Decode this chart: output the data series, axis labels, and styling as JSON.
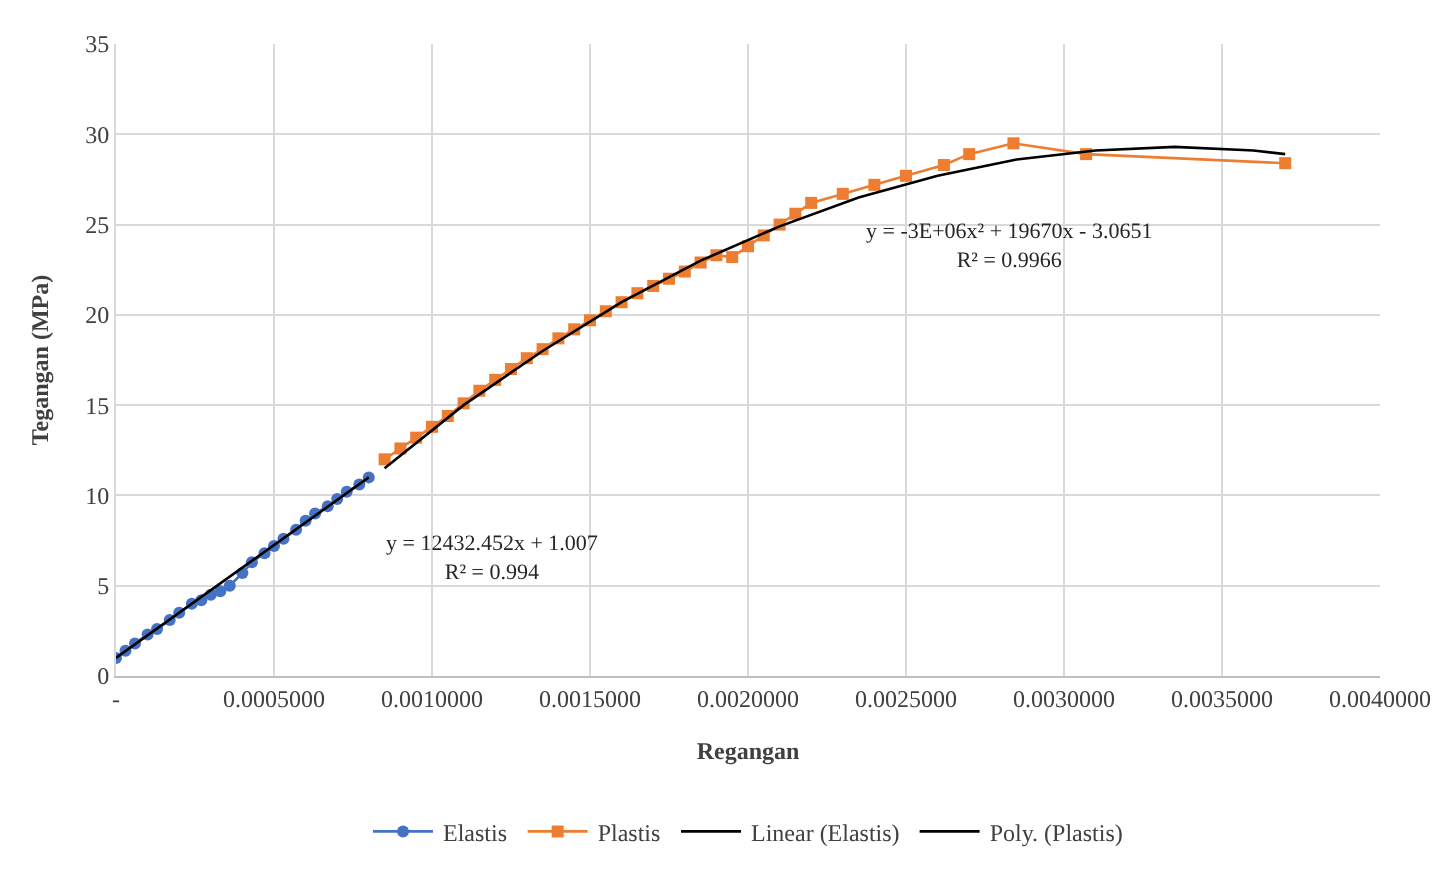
{
  "chart_data": {
    "type": "line",
    "xlabel": "Regangan",
    "ylabel": "Tegangan (MPa)",
    "xlim": [
      0,
      0.004
    ],
    "xticks": [
      {
        "value": 0,
        "label": "-"
      },
      {
        "value": 0.0005,
        "label": "0.0005000"
      },
      {
        "value": 0.001,
        "label": "0.0010000"
      },
      {
        "value": 0.0015,
        "label": "0.0015000"
      },
      {
        "value": 0.002,
        "label": "0.0020000"
      },
      {
        "value": 0.0025,
        "label": "0.0025000"
      },
      {
        "value": 0.003,
        "label": "0.0030000"
      },
      {
        "value": 0.0035,
        "label": "0.0035000"
      },
      {
        "value": 0.004,
        "label": "0.0040000"
      }
    ],
    "ylim": [
      0,
      35
    ],
    "yticks": [
      0,
      5,
      10,
      15,
      20,
      25,
      30,
      35
    ],
    "grid": true,
    "legend": "bottom",
    "series": [
      {
        "name": "Elastis",
        "color": "#4472c4",
        "marker": "circle",
        "x": [
          0,
          3e-05,
          6e-05,
          0.0001,
          0.00013,
          0.00017,
          0.0002,
          0.00024,
          0.00027,
          0.0003,
          0.00033,
          0.00036,
          0.0004,
          0.00043,
          0.00047,
          0.0005,
          0.00053,
          0.00057,
          0.0006,
          0.00063,
          0.00067,
          0.0007,
          0.00073,
          0.00077,
          0.0008
        ],
        "values": [
          1.0,
          1.4,
          1.8,
          2.3,
          2.6,
          3.1,
          3.5,
          4.0,
          4.2,
          4.5,
          4.7,
          5.0,
          5.7,
          6.3,
          6.8,
          7.2,
          7.6,
          8.1,
          8.6,
          9.0,
          9.4,
          9.8,
          10.2,
          10.6,
          11.0
        ]
      },
      {
        "name": "Plastis",
        "color": "#ed7d31",
        "marker": "square",
        "x": [
          0.00085,
          0.0009,
          0.00095,
          0.001,
          0.00105,
          0.0011,
          0.00115,
          0.0012,
          0.00125,
          0.0013,
          0.00135,
          0.0014,
          0.00145,
          0.0015,
          0.00155,
          0.0016,
          0.00165,
          0.0017,
          0.00175,
          0.0018,
          0.00185,
          0.0019,
          0.00195,
          0.002,
          0.00205,
          0.0021,
          0.00215,
          0.0022,
          0.0023,
          0.0024,
          0.0025,
          0.00262,
          0.0027,
          0.00284,
          0.00307,
          0.0037
        ],
        "values": [
          12.0,
          12.6,
          13.2,
          13.8,
          14.4,
          15.1,
          15.8,
          16.4,
          17.0,
          17.6,
          18.1,
          18.7,
          19.2,
          19.7,
          20.2,
          20.7,
          21.2,
          21.6,
          22.0,
          22.4,
          22.9,
          23.3,
          23.2,
          23.8,
          24.4,
          25.0,
          25.6,
          26.2,
          26.7,
          27.2,
          27.7,
          28.3,
          28.9,
          29.5,
          28.9,
          28.4
        ]
      },
      {
        "name": "Linear (Elastis)",
        "color": "#000000",
        "marker": "none",
        "x": [
          0,
          0.0008
        ],
        "values": [
          1.0,
          11.0
        ]
      },
      {
        "name": "Poly. (Plastis)",
        "color": "#000000",
        "marker": "none",
        "x": [
          0.00085,
          0.0011,
          0.00135,
          0.0016,
          0.00185,
          0.0021,
          0.00235,
          0.0026,
          0.00285,
          0.0031,
          0.00335,
          0.0036,
          0.0037
        ],
        "values": [
          11.5,
          15.0,
          18.0,
          20.7,
          23.0,
          24.9,
          26.5,
          27.7,
          28.6,
          29.1,
          29.3,
          29.1,
          28.9
        ]
      }
    ],
    "annotations": [
      "y = 12432.452x + 1.007\nR² = 0.994",
      "y = -3E+06x² + 19670x - 3.0651\nR² = 0.9966"
    ]
  }
}
